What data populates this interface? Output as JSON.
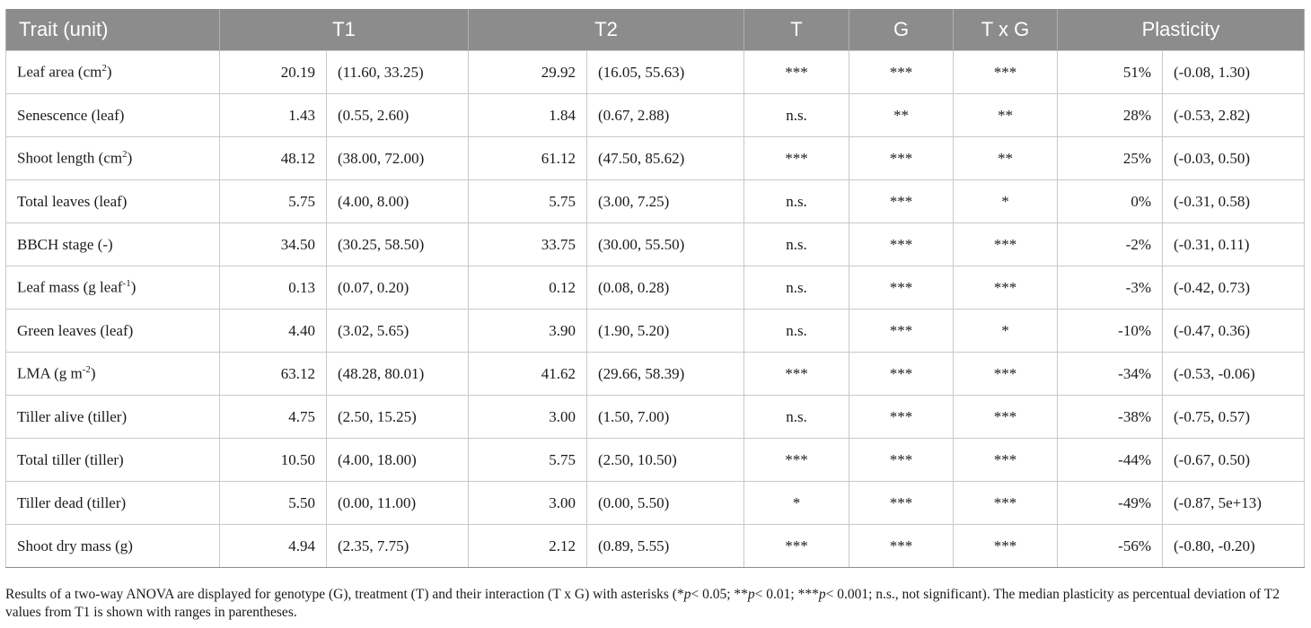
{
  "headers": {
    "trait": "Trait (unit)",
    "t1": "T1",
    "t2": "T2",
    "t": "T",
    "g": "G",
    "txg": "T x G",
    "plasticity": "Plasticity"
  },
  "rows": [
    {
      "name": "Leaf area (cm",
      "sup": "2",
      "name_end": ")",
      "t1": "20.19",
      "t1_range": "(11.60, 33.25)",
      "t2": "29.92",
      "t2_range": "(16.05, 55.63)",
      "t": "***",
      "g": "***",
      "txg": "***",
      "plasticity": "51%",
      "plasticity_range": "(-0.08, 1.30)"
    },
    {
      "name": "Senescence (leaf)",
      "sup": "",
      "name_end": "",
      "t1": "1.43",
      "t1_range": "(0.55, 2.60)",
      "t2": "1.84",
      "t2_range": "(0.67, 2.88)",
      "t": "n.s.",
      "g": "**",
      "txg": "**",
      "plasticity": "28%",
      "plasticity_range": "(-0.53, 2.82)"
    },
    {
      "name": "Shoot length (cm",
      "sup": "2",
      "name_end": ")",
      "t1": "48.12",
      "t1_range": "(38.00, 72.00)",
      "t2": "61.12",
      "t2_range": "(47.50, 85.62)",
      "t": "***",
      "g": "***",
      "txg": "**",
      "plasticity": "25%",
      "plasticity_range": "(-0.03, 0.50)"
    },
    {
      "name": "Total leaves (leaf)",
      "sup": "",
      "name_end": "",
      "t1": "5.75",
      "t1_range": "(4.00, 8.00)",
      "t2": "5.75",
      "t2_range": "(3.00, 7.25)",
      "t": "n.s.",
      "g": "***",
      "txg": "*",
      "plasticity": "0%",
      "plasticity_range": "(-0.31, 0.58)"
    },
    {
      "name": "BBCH stage (-)",
      "sup": "",
      "name_end": "",
      "t1": "34.50",
      "t1_range": "(30.25, 58.50)",
      "t2": "33.75",
      "t2_range": "(30.00, 55.50)",
      "t": "n.s.",
      "g": "***",
      "txg": "***",
      "plasticity": "-2%",
      "plasticity_range": "(-0.31, 0.11)"
    },
    {
      "name": "Leaf mass (g leaf",
      "sup": "-1",
      "name_end": ")",
      "t1": "0.13",
      "t1_range": "(0.07, 0.20)",
      "t2": "0.12",
      "t2_range": "(0.08, 0.28)",
      "t": "n.s.",
      "g": "***",
      "txg": "***",
      "plasticity": "-3%",
      "plasticity_range": "(-0.42, 0.73)"
    },
    {
      "name": "Green leaves (leaf)",
      "sup": "",
      "name_end": "",
      "t1": "4.40",
      "t1_range": "(3.02, 5.65)",
      "t2": "3.90",
      "t2_range": "(1.90, 5.20)",
      "t": "n.s.",
      "g": "***",
      "txg": "*",
      "plasticity": "-10%",
      "plasticity_range": "(-0.47, 0.36)"
    },
    {
      "name": "LMA (g m",
      "sup": "-2",
      "name_end": ")",
      "t1": "63.12",
      "t1_range": "(48.28, 80.01)",
      "t2": "41.62",
      "t2_range": "(29.66, 58.39)",
      "t": "***",
      "g": "***",
      "txg": "***",
      "plasticity": "-34%",
      "plasticity_range": "(-0.53, -0.06)"
    },
    {
      "name": "Tiller alive (tiller)",
      "sup": "",
      "name_end": "",
      "t1": "4.75",
      "t1_range": "(2.50, 15.25)",
      "t2": "3.00",
      "t2_range": "(1.50, 7.00)",
      "t": "n.s.",
      "g": "***",
      "txg": "***",
      "plasticity": "-38%",
      "plasticity_range": "(-0.75, 0.57)"
    },
    {
      "name": "Total tiller (tiller)",
      "sup": "",
      "name_end": "",
      "t1": "10.50",
      "t1_range": "(4.00, 18.00)",
      "t2": "5.75",
      "t2_range": "(2.50, 10.50)",
      "t": "***",
      "g": "***",
      "txg": "***",
      "plasticity": "-44%",
      "plasticity_range": "(-0.67, 0.50)"
    },
    {
      "name": "Tiller dead (tiller)",
      "sup": "",
      "name_end": "",
      "t1": "5.50",
      "t1_range": "(0.00, 11.00)",
      "t2": "3.00",
      "t2_range": "(0.00, 5.50)",
      "t": "*",
      "g": "***",
      "txg": "***",
      "plasticity": "-49%",
      "plasticity_range": "(-0.87, 5e+13)"
    },
    {
      "name": "Shoot dry mass (g)",
      "sup": "",
      "name_end": "",
      "t1": "4.94",
      "t1_range": "(2.35, 7.75)",
      "t2": "2.12",
      "t2_range": "(0.89, 5.55)",
      "t": "***",
      "g": "***",
      "txg": "***",
      "plasticity": "-56%",
      "plasticity_range": "(-0.80, -0.20)"
    }
  ],
  "caption": {
    "part1": "Results of a two-way ANOVA are displayed for genotype (G), treatment (T) and their interaction (T x G) with asterisks (*",
    "p1": "p",
    "part2": "< 0.05; **",
    "p2": "p",
    "part3": "< 0.01; ***",
    "p3": "p",
    "part4": "< 0.001; n.s., not significant). The median plasticity as percentual deviation of T2 values from T1 is shown with ranges in parentheses."
  }
}
